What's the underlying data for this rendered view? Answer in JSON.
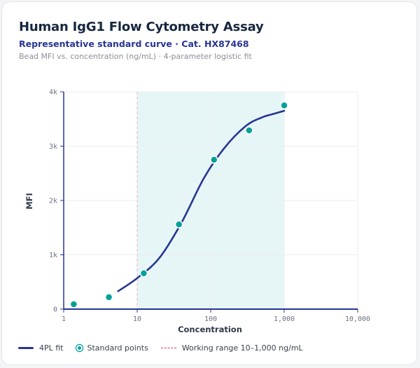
{
  "header": {
    "title": "Human IgG1 Flow Cytometry Assay",
    "subtitle": "Representative standard curve · Cat. HX87468",
    "caption": "Bead MFI vs. concentration (ng/mL) · 4-parameter logistic fit"
  },
  "colors": {
    "fit": "#283593",
    "points": "#00a19a",
    "point_ring": "#ffffff",
    "working_range_fill": "#e6f6f6",
    "working_range_line": "#d64457",
    "axis": "#283593",
    "grid": "#eceef2",
    "tick_text": "#6b7280",
    "label_text": "#2e3a4a"
  },
  "chart_data": {
    "type": "scatter",
    "xlabel": "Concentration",
    "ylabel": "MFI",
    "x_scale": "log",
    "xlim": [
      1,
      10000
    ],
    "ylim": [
      0,
      4000
    ],
    "x_ticks": [
      1,
      10,
      100,
      1000,
      10000
    ],
    "x_tick_labels": [
      "1",
      "10",
      "100",
      "1,000",
      "10,000"
    ],
    "y_ticks": [
      0,
      1000,
      2000,
      3000,
      4000
    ],
    "y_tick_labels": [
      "0",
      "1k",
      "2k",
      "3k",
      "4k"
    ],
    "grid": true,
    "legend_position": "bottom-left",
    "series": [
      {
        "name": "Standard points",
        "kind": "points",
        "x": [
          1.37,
          4.12,
          12.3,
          37.0,
          111,
          333,
          1000
        ],
        "y": [
          90,
          220,
          660,
          1560,
          2750,
          3290,
          3750
        ]
      },
      {
        "name": "4PL fit",
        "kind": "line",
        "x": [
          5.5,
          10,
          20,
          40,
          80,
          150,
          300,
          500,
          700,
          1000
        ],
        "y": [
          330,
          570,
          940,
          1590,
          2400,
          2950,
          3370,
          3530,
          3590,
          3650
        ]
      }
    ],
    "working_range": {
      "label": "Working range 10–1,000 ng/mL",
      "x": [
        10,
        1000
      ]
    }
  },
  "legend": {
    "fit_label": "4PL fit",
    "points_label": "Standard points",
    "range_label": "Working range 10–1,000 ng/mL"
  }
}
